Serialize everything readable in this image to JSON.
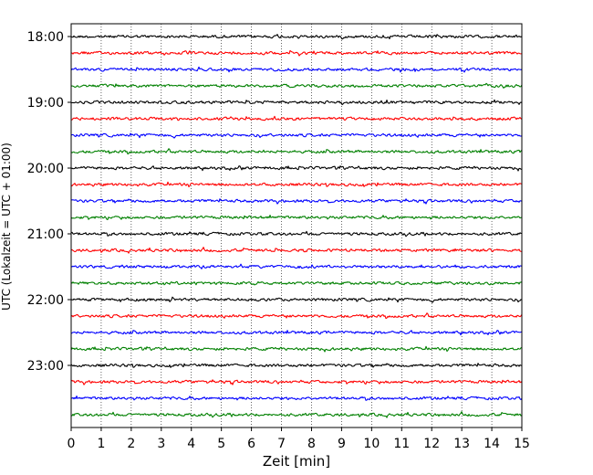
{
  "chart_data": {
    "type": "line",
    "title": "",
    "xlabel": "Zeit  [min]",
    "ylabel": "UTC (Lokalzeit = UTC + 01:00)",
    "xlim": [
      0,
      15
    ],
    "x_ticks": [
      "0",
      "1",
      "2",
      "3",
      "4",
      "5",
      "6",
      "7",
      "8",
      "9",
      "10",
      "11",
      "12",
      "13",
      "14",
      "15"
    ],
    "y_tick_labels": [
      "18:00",
      "19:00",
      "20:00",
      "21:00",
      "22:00",
      "23:00"
    ],
    "grid": "vertical dotted",
    "legend": "none",
    "trace_interval_minutes": 15,
    "trace_colors": [
      "#000000",
      "#ff0000",
      "#0000ff",
      "#008000"
    ],
    "series": [
      {
        "start": "18:00",
        "color": "#000000"
      },
      {
        "start": "18:15",
        "color": "#ff0000"
      },
      {
        "start": "18:30",
        "color": "#0000ff"
      },
      {
        "start": "18:45",
        "color": "#008000"
      },
      {
        "start": "19:00",
        "color": "#000000"
      },
      {
        "start": "19:15",
        "color": "#ff0000"
      },
      {
        "start": "19:30",
        "color": "#0000ff"
      },
      {
        "start": "19:45",
        "color": "#008000"
      },
      {
        "start": "20:00",
        "color": "#000000"
      },
      {
        "start": "20:15",
        "color": "#ff0000"
      },
      {
        "start": "20:30",
        "color": "#0000ff"
      },
      {
        "start": "20:45",
        "color": "#008000"
      },
      {
        "start": "21:00",
        "color": "#000000"
      },
      {
        "start": "21:15",
        "color": "#ff0000"
      },
      {
        "start": "21:30",
        "color": "#0000ff"
      },
      {
        "start": "21:45",
        "color": "#008000"
      },
      {
        "start": "22:00",
        "color": "#000000"
      },
      {
        "start": "22:15",
        "color": "#ff0000"
      },
      {
        "start": "22:30",
        "color": "#0000ff"
      },
      {
        "start": "22:45",
        "color": "#008000"
      },
      {
        "start": "23:00",
        "color": "#000000"
      },
      {
        "start": "23:15",
        "color": "#ff0000"
      },
      {
        "start": "23:30",
        "color": "#0000ff"
      },
      {
        "start": "23:45",
        "color": "#008000"
      }
    ]
  }
}
